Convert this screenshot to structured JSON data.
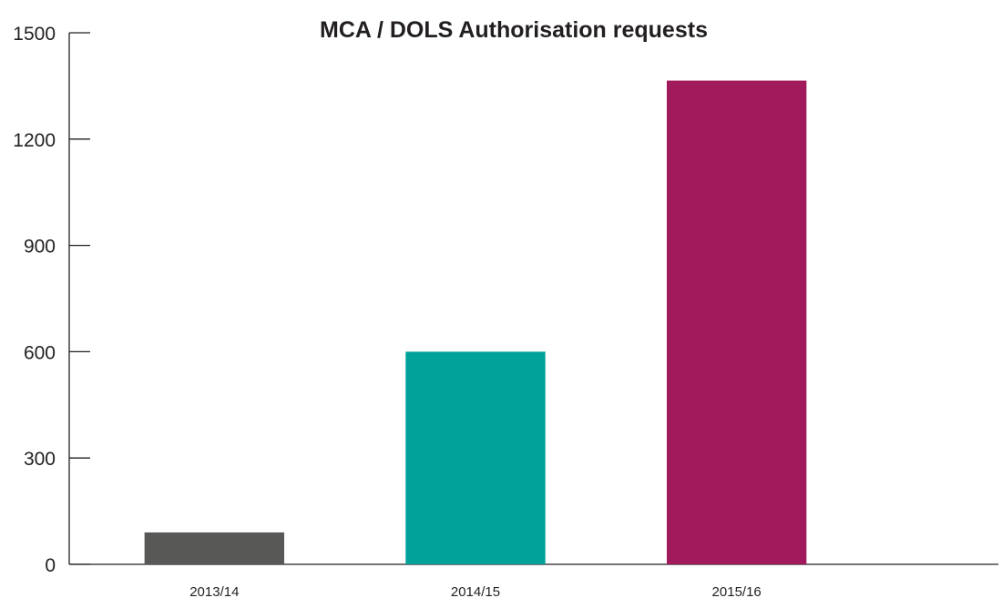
{
  "chart_data": {
    "type": "bar",
    "title": "MCA / DOLS Authorisation requests",
    "xlabel": "",
    "ylabel": "",
    "categories": [
      "2013/14",
      "2014/15",
      "2015/16"
    ],
    "values": [
      90,
      600,
      1365
    ],
    "colors": [
      "#585856",
      "#00a29a",
      "#a11a5c"
    ],
    "ylim": [
      0,
      1500
    ],
    "yticks": [
      0,
      300,
      600,
      900,
      1200,
      1500
    ],
    "ytick_labels": [
      "0",
      "300",
      "600",
      "900",
      "1200",
      "1500"
    ],
    "grid": false,
    "legend": "none"
  }
}
